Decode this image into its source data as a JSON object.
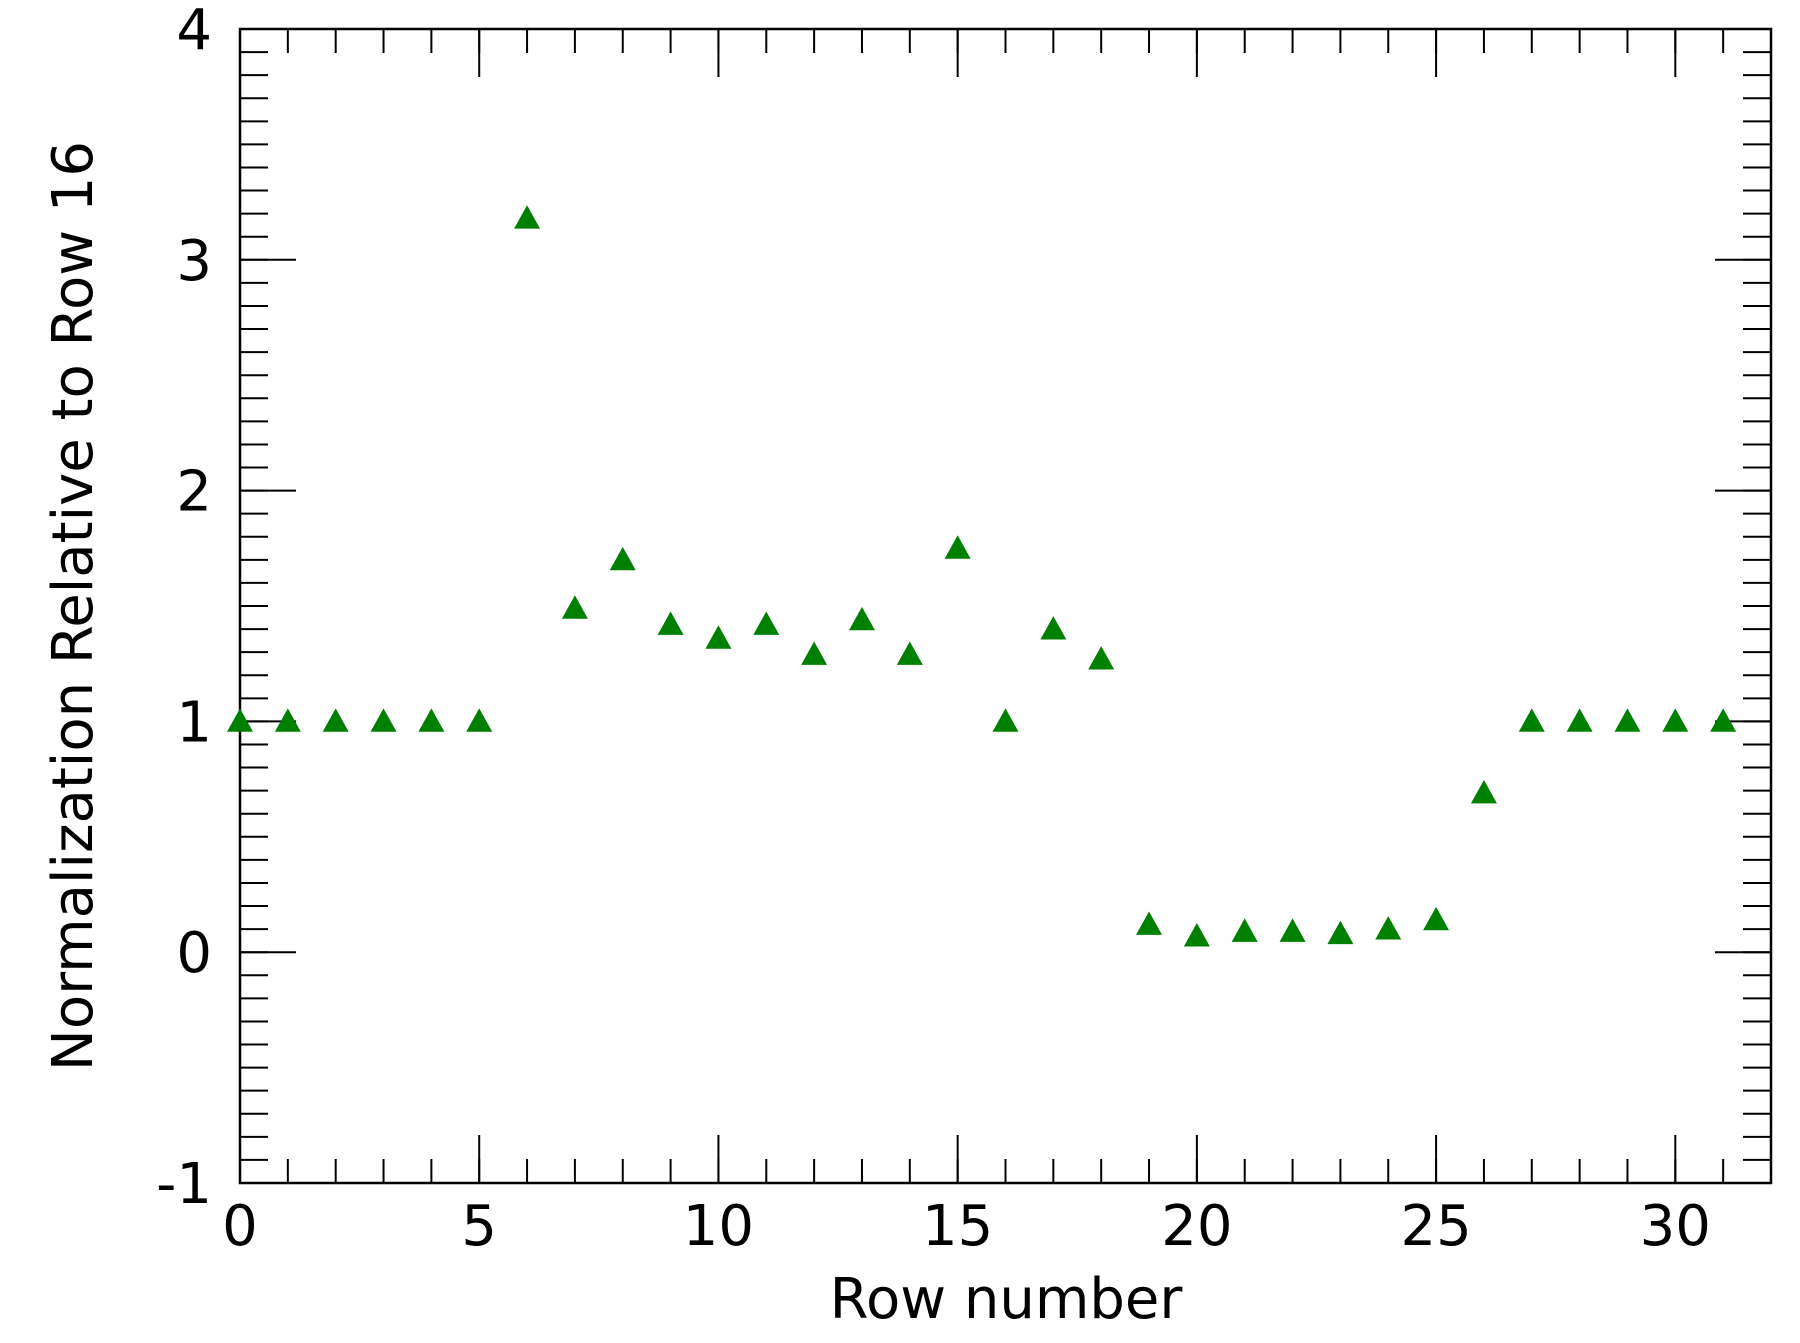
{
  "chart_data": {
    "type": "scatter",
    "x_label": "Row number",
    "y_label": "Normalization Relative to Row 16",
    "x": [
      0,
      1,
      2,
      3,
      4,
      5,
      6,
      7,
      8,
      9,
      10,
      11,
      12,
      13,
      14,
      15,
      16,
      17,
      18,
      19,
      20,
      21,
      22,
      23,
      24,
      25,
      26,
      27,
      28,
      29,
      30,
      31
    ],
    "series": [
      {
        "color": "#008000",
        "marker": "triangle",
        "values": [
          1,
          1,
          1,
          1,
          1,
          1,
          3.18,
          1.49,
          1.7,
          1.42,
          1.36,
          1.42,
          1.29,
          1.44,
          1.29,
          1.75,
          1,
          1.4,
          1.27,
          0.12,
          0.07,
          0.09,
          0.09,
          0.08,
          0.1,
          0.14,
          0.69,
          1,
          1,
          1,
          1,
          1
        ]
      }
    ],
    "xlim": [
      0,
      32
    ],
    "ylim": [
      -1,
      4
    ],
    "xticks": [
      0,
      5,
      10,
      15,
      20,
      25,
      30
    ],
    "yticks": [
      -1,
      0,
      1,
      2,
      3,
      4
    ]
  }
}
